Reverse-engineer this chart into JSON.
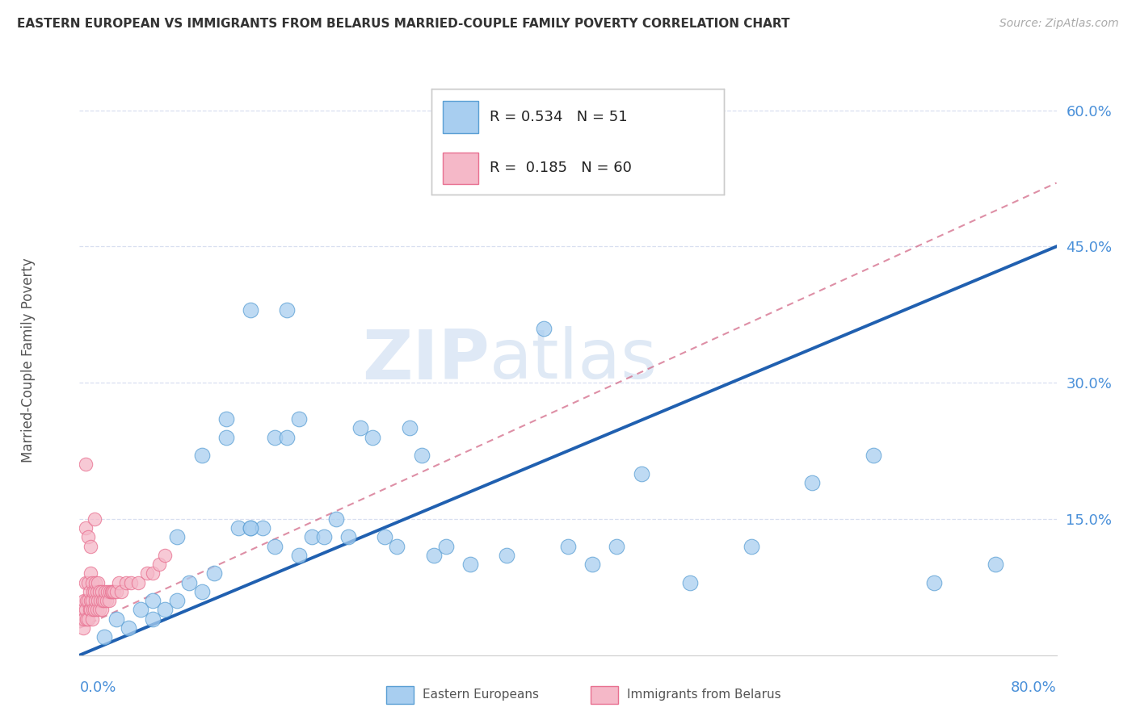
{
  "title": "EASTERN EUROPEAN VS IMMIGRANTS FROM BELARUS MARRIED-COUPLE FAMILY POVERTY CORRELATION CHART",
  "source": "Source: ZipAtlas.com",
  "ylabel": "Married-Couple Family Poverty",
  "legend_label1": "Eastern Europeans",
  "legend_label2": "Immigrants from Belarus",
  "R1": "0.534",
  "N1": "51",
  "R2": "0.185",
  "N2": "60",
  "watermark_zip": "ZIP",
  "watermark_atlas": "atlas",
  "color_blue": "#a8cef0",
  "color_pink": "#f5b8c8",
  "color_blue_edge": "#5a9fd4",
  "color_pink_edge": "#e87090",
  "color_line_blue": "#2060b0",
  "color_line_pink_dash": "#d06080",
  "color_text_blue": "#4a90d9",
  "color_grid": "#d8dff0",
  "xlim": [
    0.0,
    0.8
  ],
  "ylim": [
    0.0,
    0.65
  ],
  "ytick_positions": [
    0.0,
    0.15,
    0.3,
    0.45,
    0.6
  ],
  "ytick_labels": [
    "",
    "15.0%",
    "30.0%",
    "45.0%",
    "60.0%"
  ],
  "blue_line_x0": 0.0,
  "blue_line_y0": 0.0,
  "blue_line_x1": 0.8,
  "blue_line_y1": 0.45,
  "pink_line_x0": 0.0,
  "pink_line_y0": 0.03,
  "pink_line_x1": 0.8,
  "pink_line_y1": 0.52,
  "blue_x": [
    0.02,
    0.03,
    0.04,
    0.05,
    0.06,
    0.06,
    0.07,
    0.08,
    0.08,
    0.09,
    0.1,
    0.1,
    0.11,
    0.12,
    0.13,
    0.14,
    0.14,
    0.15,
    0.16,
    0.17,
    0.17,
    0.18,
    0.19,
    0.2,
    0.21,
    0.22,
    0.23,
    0.24,
    0.25,
    0.26,
    0.27,
    0.28,
    0.29,
    0.3,
    0.32,
    0.35,
    0.38,
    0.4,
    0.42,
    0.44,
    0.46,
    0.5,
    0.55,
    0.6,
    0.65,
    0.7,
    0.75,
    0.12,
    0.14,
    0.16,
    0.18
  ],
  "blue_y": [
    0.02,
    0.04,
    0.03,
    0.05,
    0.04,
    0.06,
    0.05,
    0.06,
    0.13,
    0.08,
    0.07,
    0.22,
    0.09,
    0.24,
    0.14,
    0.14,
    0.38,
    0.14,
    0.24,
    0.38,
    0.24,
    0.11,
    0.13,
    0.13,
    0.15,
    0.13,
    0.25,
    0.24,
    0.13,
    0.12,
    0.25,
    0.22,
    0.11,
    0.12,
    0.1,
    0.11,
    0.36,
    0.12,
    0.1,
    0.12,
    0.2,
    0.08,
    0.12,
    0.19,
    0.22,
    0.08,
    0.1,
    0.26,
    0.14,
    0.12,
    0.26
  ],
  "pink_x": [
    0.002,
    0.003,
    0.003,
    0.004,
    0.004,
    0.005,
    0.005,
    0.005,
    0.006,
    0.006,
    0.007,
    0.007,
    0.007,
    0.008,
    0.008,
    0.009,
    0.009,
    0.009,
    0.01,
    0.01,
    0.01,
    0.011,
    0.011,
    0.012,
    0.012,
    0.013,
    0.013,
    0.014,
    0.014,
    0.015,
    0.015,
    0.016,
    0.016,
    0.017,
    0.018,
    0.018,
    0.019,
    0.02,
    0.021,
    0.022,
    0.023,
    0.024,
    0.025,
    0.026,
    0.027,
    0.028,
    0.03,
    0.032,
    0.034,
    0.038,
    0.042,
    0.048,
    0.055,
    0.06,
    0.065,
    0.07,
    0.005,
    0.007,
    0.009,
    0.012
  ],
  "pink_y": [
    0.04,
    0.03,
    0.05,
    0.04,
    0.06,
    0.05,
    0.08,
    0.21,
    0.04,
    0.06,
    0.04,
    0.06,
    0.08,
    0.05,
    0.07,
    0.05,
    0.06,
    0.09,
    0.04,
    0.06,
    0.08,
    0.05,
    0.07,
    0.05,
    0.07,
    0.06,
    0.08,
    0.05,
    0.07,
    0.06,
    0.08,
    0.05,
    0.07,
    0.06,
    0.05,
    0.07,
    0.06,
    0.06,
    0.07,
    0.06,
    0.07,
    0.06,
    0.07,
    0.07,
    0.07,
    0.07,
    0.07,
    0.08,
    0.07,
    0.08,
    0.08,
    0.08,
    0.09,
    0.09,
    0.1,
    0.11,
    0.14,
    0.13,
    0.12,
    0.15
  ]
}
